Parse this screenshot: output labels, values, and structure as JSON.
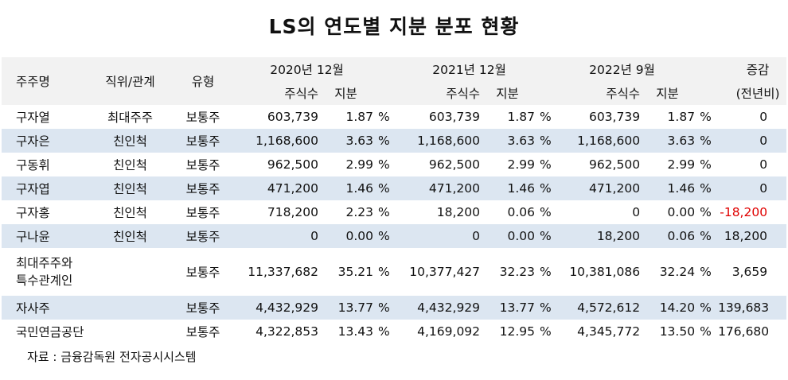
{
  "title": "LS의 연도별 지분 분포 현황",
  "header": {
    "shareholder": "주주명",
    "position": "직위/관계",
    "type": "유형",
    "periods": [
      "2020년 12월",
      "2021년 12월",
      "2022년 9월"
    ],
    "shares": "주식수",
    "stake": "지분",
    "change_line1": "증감",
    "change_line2": "(전년비)"
  },
  "pct_unit": "%",
  "rows": [
    {
      "name": "구자열",
      "relation": "최대주주",
      "type": "보통주",
      "s2020": "603,739",
      "p2020": "1.87",
      "s2021": "603,739",
      "p2021": "1.87",
      "s2022": "603,739",
      "p2022": "1.87",
      "change": "0"
    },
    {
      "name": "구자은",
      "relation": "친인척",
      "type": "보통주",
      "s2020": "1,168,600",
      "p2020": "3.63",
      "s2021": "1,168,600",
      "p2021": "3.63",
      "s2022": "1,168,600",
      "p2022": "3.63",
      "change": "0"
    },
    {
      "name": "구동휘",
      "relation": "친인척",
      "type": "보통주",
      "s2020": "962,500",
      "p2020": "2.99",
      "s2021": "962,500",
      "p2021": "2.99",
      "s2022": "962,500",
      "p2022": "2.99",
      "change": "0"
    },
    {
      "name": "구자엽",
      "relation": "친인척",
      "type": "보통주",
      "s2020": "471,200",
      "p2020": "1.46",
      "s2021": "471,200",
      "p2021": "1.46",
      "s2022": "471,200",
      "p2022": "1.46",
      "change": "0"
    },
    {
      "name": "구자홍",
      "relation": "친인척",
      "type": "보통주",
      "s2020": "718,200",
      "p2020": "2.23",
      "s2021": "18,200",
      "p2021": "0.06",
      "s2022": "0",
      "p2022": "0.00",
      "change": "-18,200"
    },
    {
      "name": "구나윤",
      "relation": "친인척",
      "type": "보통주",
      "s2020": "0",
      "p2020": "0.00",
      "s2021": "0",
      "p2021": "0.00",
      "s2022": "18,200",
      "p2022": "0.06",
      "change": "18,200"
    },
    {
      "name_line1": "최대주주와",
      "name_line2": "특수관계인",
      "relation": "",
      "type": "보통주",
      "s2020": "11,337,682",
      "p2020": "35.21",
      "s2021": "10,377,427",
      "p2021": "32.23",
      "s2022": "10,381,086",
      "p2022": "32.24",
      "change": "3,659"
    },
    {
      "name": "자사주",
      "relation": "",
      "type": "보통주",
      "s2020": "4,432,929",
      "p2020": "13.77",
      "s2021": "4,432,929",
      "p2021": "13.77",
      "s2022": "4,572,612",
      "p2022": "14.20",
      "change": "139,683"
    },
    {
      "name": "국민연금공단",
      "relation": "",
      "type": "보통주",
      "s2020": "4,322,853",
      "p2020": "13.43",
      "s2021": "4,169,092",
      "p2021": "12.95",
      "s2022": "4,345,772",
      "p2022": "13.50",
      "change": "176,680"
    }
  ],
  "source": "자료 : 금융감독원 전자공시시스템",
  "colors": {
    "alt_row": "#dce6f1",
    "header_bg": "#f2f2f2",
    "negative": "#e00000"
  }
}
